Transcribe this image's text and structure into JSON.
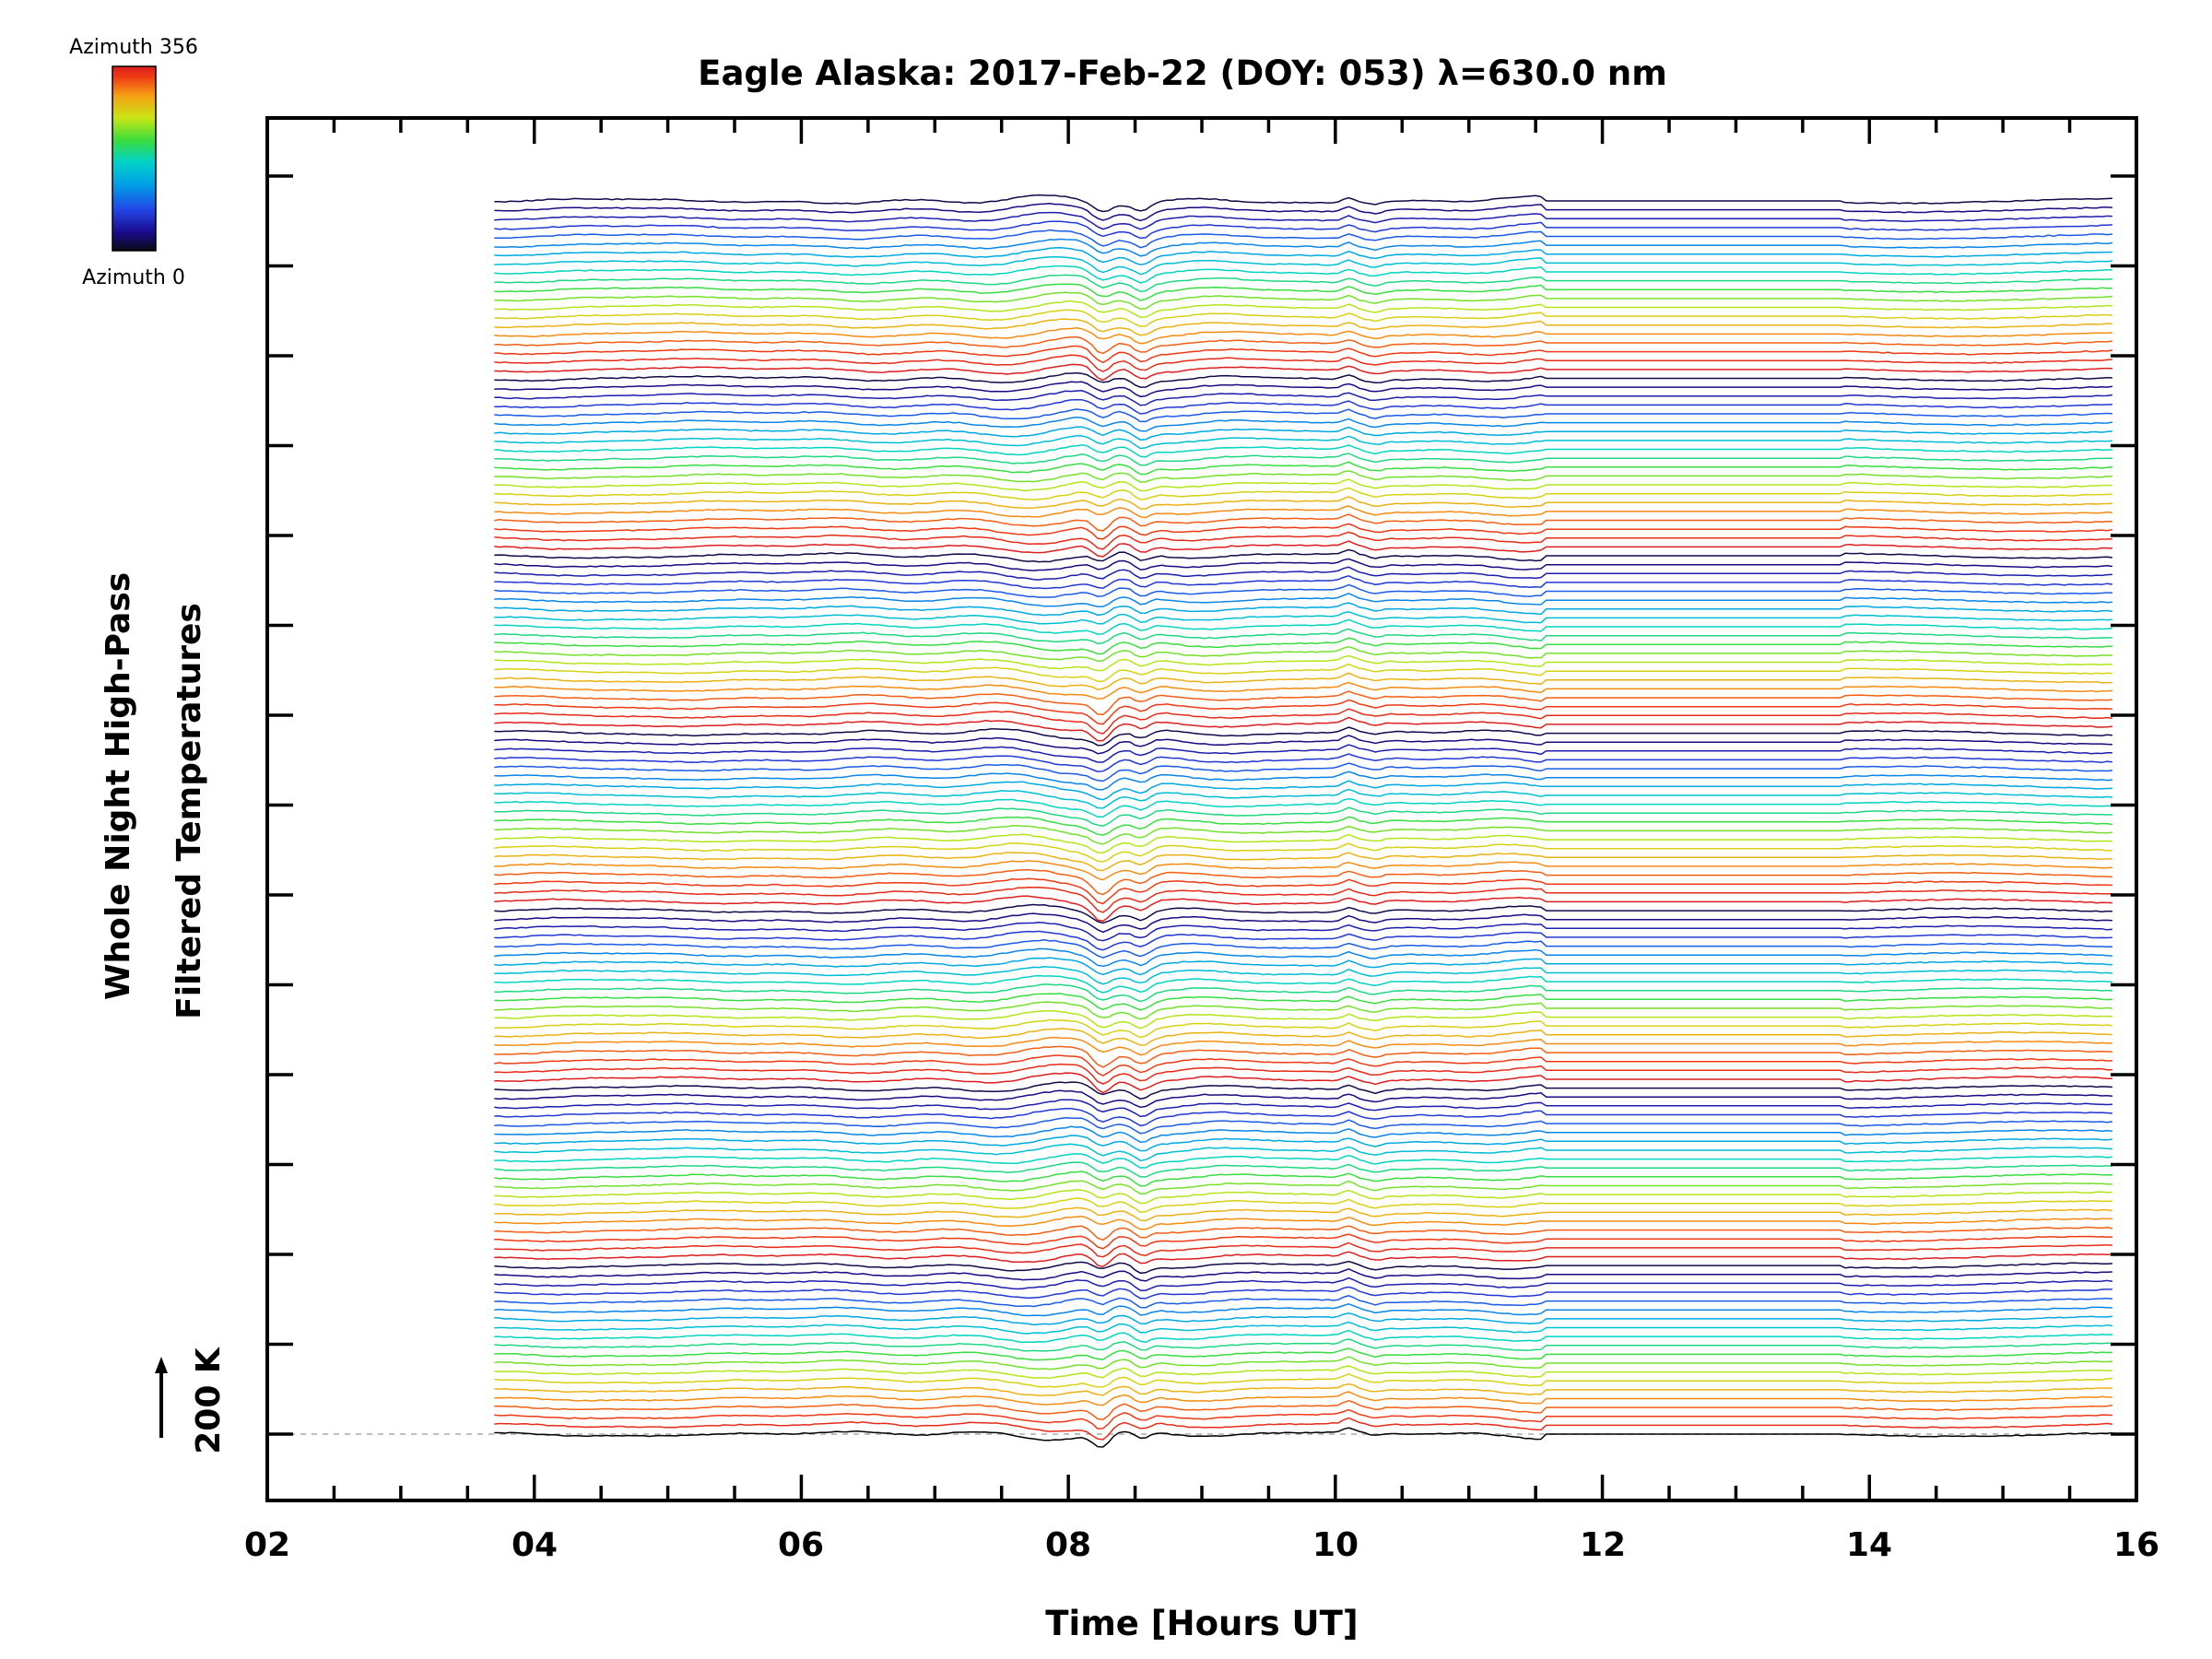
{
  "chart_data": {
    "type": "line",
    "title": "Eagle Alaska: 2017-Feb-22 (DOY: 053) λ=630.0 nm",
    "xlabel": "Time [Hours UT]",
    "ylabel_line1": "Whole Night High-Pass",
    "ylabel_line2": "Filtered Temperatures",
    "xlim": [
      2,
      16
    ],
    "x_tick_labels": [
      "02",
      "04",
      "06",
      "08",
      "10",
      "12",
      "14",
      "16"
    ],
    "scale_label": "200 K",
    "colorbar": {
      "top_label": "Azimuth 356",
      "bottom_label": "Azimuth 0",
      "colormap": [
        "#0a0a14",
        "#1a0a8c",
        "#2244e6",
        "#00a0e6",
        "#00d2c8",
        "#3cdc3c",
        "#c8e614",
        "#f5a014",
        "#f03c14",
        "#dc1e1e"
      ]
    },
    "data_start_hour": 3.7,
    "data_end_hour": 15.85,
    "flat_gap_hours": [
      11.55,
      13.8
    ],
    "trace_count": 140,
    "trace_groups": 7,
    "event_hours": [
      8.25,
      8.55,
      10.1,
      10.3
    ],
    "colors": {
      "axis": "#000000",
      "baseline": "#aaaaaa",
      "background": "#ffffff"
    }
  }
}
